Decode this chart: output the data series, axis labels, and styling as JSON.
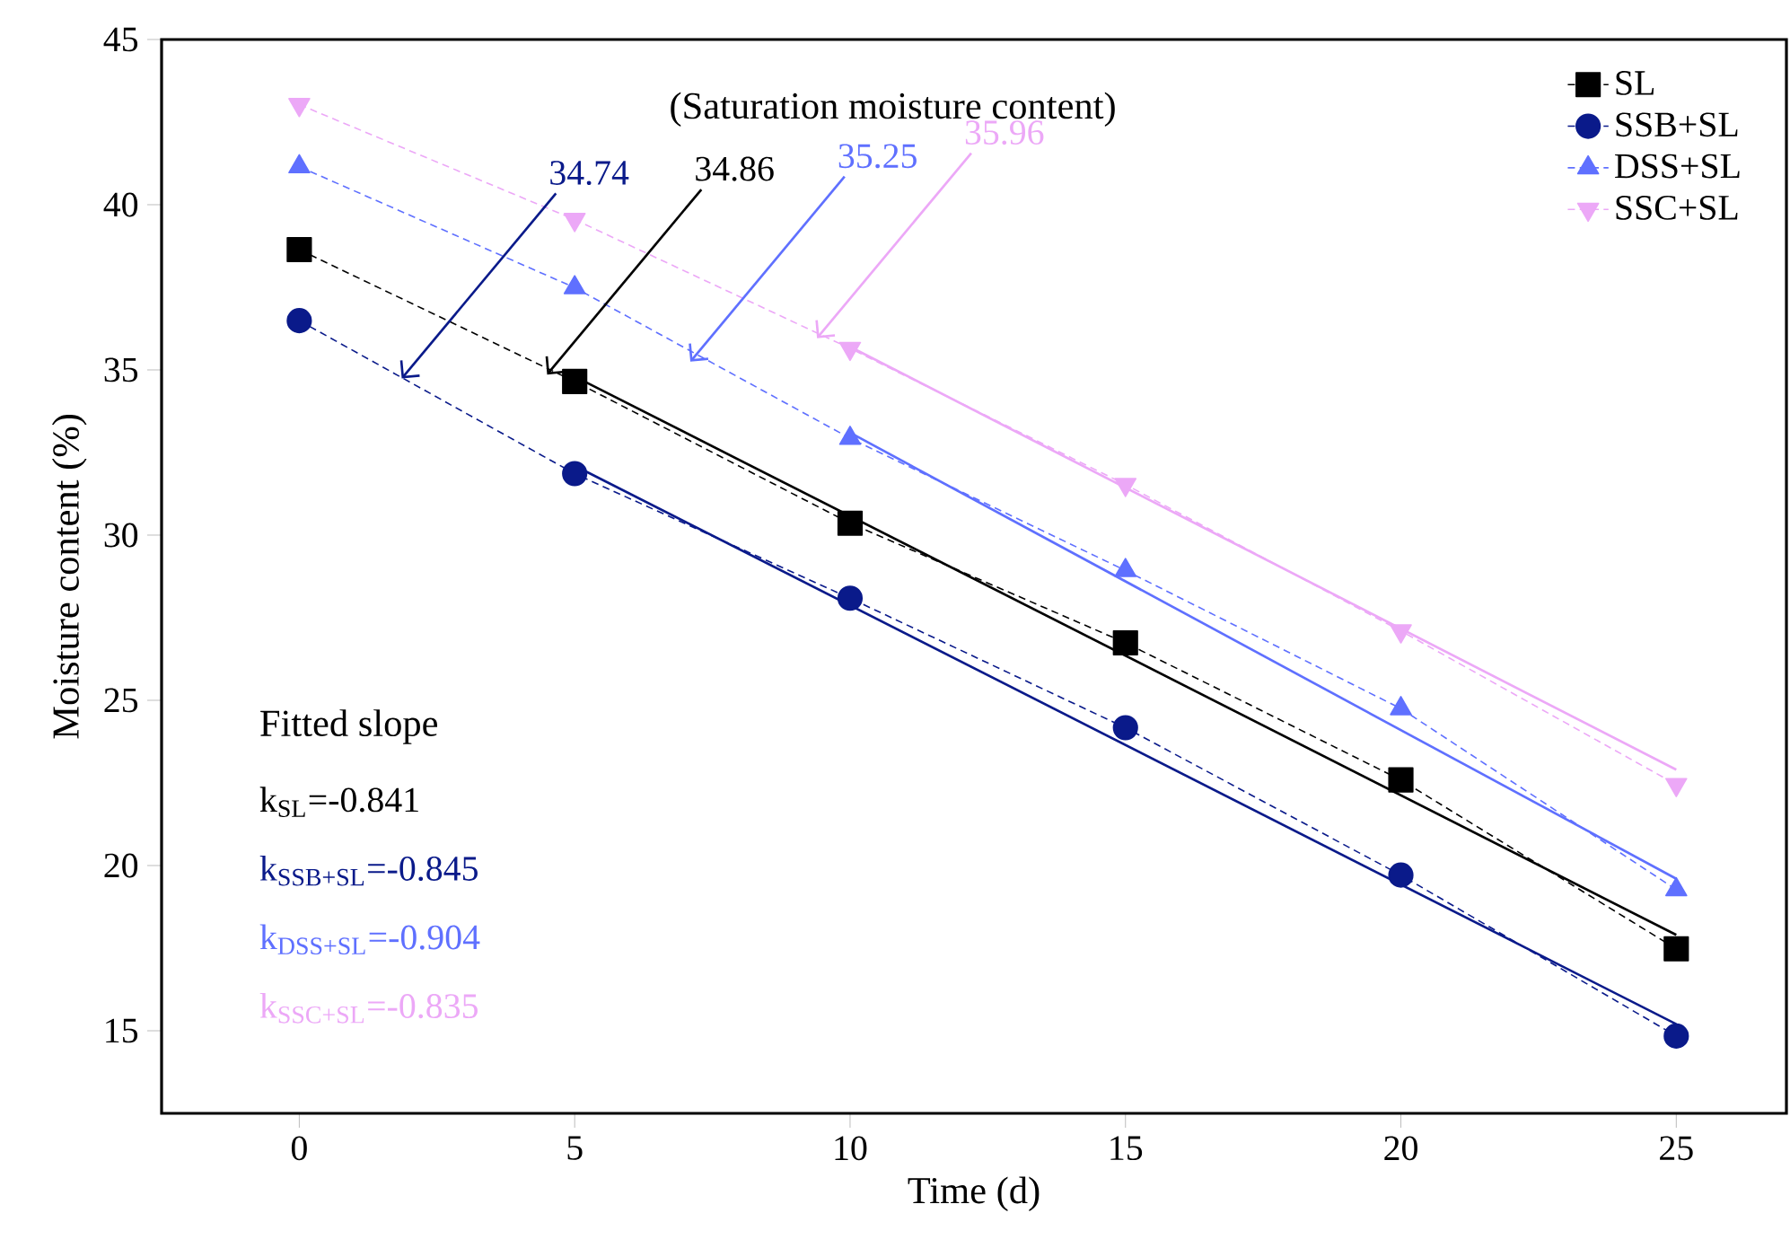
{
  "chart_data": {
    "type": "line",
    "xlabel": "Time (d)",
    "ylabel": "Moisture content (%)",
    "x": [
      0,
      5,
      10,
      15,
      20,
      25
    ],
    "xlim": [
      -2.5,
      27
    ],
    "ylim": [
      12.5,
      45
    ],
    "xticks": [
      0,
      5,
      10,
      15,
      20,
      25
    ],
    "yticks": [
      15,
      20,
      25,
      30,
      35,
      40,
      45
    ],
    "legend": "top right",
    "series": [
      {
        "name": "SL",
        "color": "#000000",
        "marker": "square",
        "line_style": "dashed",
        "values": [
          38.64,
          34.65,
          30.36,
          26.74,
          22.59,
          17.48
        ]
      },
      {
        "name": "SSB+SL",
        "color": "#0a1a8a",
        "marker": "circle",
        "line_style": "dashed",
        "values": [
          36.49,
          31.86,
          28.09,
          24.17,
          19.71,
          14.84
        ]
      },
      {
        "name": "DSS+SL",
        "color": "#5f70ff",
        "marker": "triangle",
        "line_style": "dashed",
        "values": [
          41.15,
          37.49,
          32.93,
          28.93,
          24.75,
          19.27
        ]
      },
      {
        "name": "SSC+SL",
        "color": "#eca8f7",
        "marker": "triangle down",
        "line_style": "dashed",
        "values": [
          43.03,
          39.55,
          35.65,
          31.53,
          27.1,
          22.45
        ]
      },
      {
        "type": "line",
        "color": "#000000",
        "marker": "none",
        "line_style": "solid",
        "x": [
          5,
          25
        ],
        "values": [
          34.8,
          17.9
        ]
      },
      {
        "type": "line",
        "color": "#0a1a8a",
        "marker": "none",
        "line_style": "solid",
        "x": [
          5,
          25
        ],
        "values": [
          32.1,
          15.2
        ]
      },
      {
        "type": "line",
        "color": "#5f70ff",
        "marker": "none",
        "line_style": "solid",
        "x": [
          10,
          25
        ],
        "values": [
          33.1,
          19.6
        ]
      },
      {
        "type": "line",
        "color": "#eca8f7",
        "marker": "none",
        "line_style": "solid",
        "x": [
          10,
          25
        ],
        "values": [
          35.7,
          22.9
        ]
      }
    ],
    "annotations": [
      "(Saturation moisture content)",
      {
        "text": "34.74",
        "x": 1.86,
        "y": 34.74
      },
      {
        "text": "34.86",
        "x": 4.5,
        "y": 34.86
      },
      {
        "text": "35.25",
        "x": 7.1,
        "y": 35.25
      },
      {
        "text": "35.96",
        "x": 9.4,
        "y": 35.96
      },
      "Fitted slope",
      "k$_{SL}$=-0.841",
      "k$_{SSB+SL}$=-0.845",
      "k$_{DSS+SL}$=-0.904",
      "k$_{SSC+SL}$=-0.835"
    ]
  }
}
